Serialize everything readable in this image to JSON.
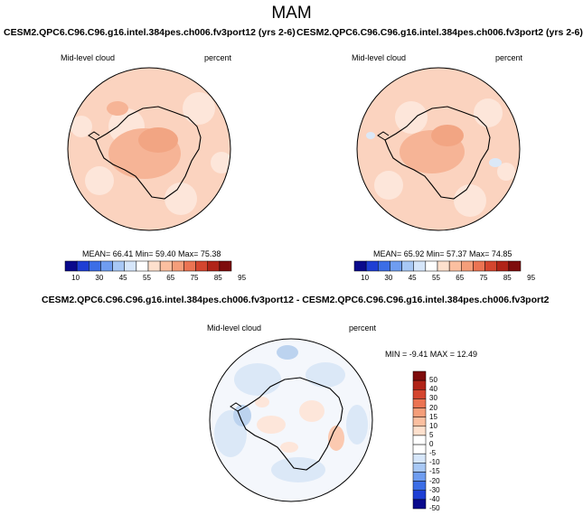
{
  "figure_title": "MAM",
  "panels": [
    {
      "title": "CESM2.QPC6.C96.C96.g16.intel.384pes.ch006.fv3port12 (yrs 2-6)",
      "variable": "Mid-level cloud",
      "units": "percent",
      "stats": "MEAN= 66.41   Min= 59.40   Max= 75.38",
      "colorbar_labels": [
        "10",
        "30",
        "45",
        "55",
        "65",
        "75",
        "85",
        "95"
      ],
      "colorbar_colors": [
        "#0a0a8c",
        "#1e3fd4",
        "#3c6ee6",
        "#6f9df0",
        "#a8c8f5",
        "#d6e6fa",
        "#ffffff",
        "#fde0cd",
        "#fbbfa0",
        "#f59e7a",
        "#eb7453",
        "#d4462f",
        "#b02418",
        "#7e0c0c"
      ]
    },
    {
      "title": "CESM2.QPC6.C96.C96.g16.intel.384pes.ch006.fv3port2 (yrs 2-6)",
      "variable": "Mid-level cloud",
      "units": "percent",
      "stats": "MEAN= 65.92   Min= 57.37   Max= 74.85",
      "colorbar_labels": [
        "10",
        "30",
        "45",
        "55",
        "65",
        "75",
        "85",
        "95"
      ],
      "colorbar_colors": [
        "#0a0a8c",
        "#1e3fd4",
        "#3c6ee6",
        "#6f9df0",
        "#a8c8f5",
        "#d6e6fa",
        "#ffffff",
        "#fde0cd",
        "#fbbfa0",
        "#f59e7a",
        "#eb7453",
        "#d4462f",
        "#b02418",
        "#7e0c0c"
      ]
    }
  ],
  "diff_panel": {
    "title": "CESM2.QPC6.C96.C96.g16.intel.384pes.ch006.fv3port12 - CESM2.QPC6.C96.C96.g16.intel.384pes.ch006.fv3port2",
    "variable": "Mid-level cloud",
    "units": "percent",
    "stats": "MIN = -9.41   MAX = 12.49",
    "colorbar_labels": [
      "50",
      "40",
      "30",
      "20",
      "15",
      "10",
      "5",
      "0",
      "-5",
      "-10",
      "-15",
      "-20",
      "-30",
      "-40",
      "-50"
    ],
    "colorbar_colors": [
      "#7e0c0c",
      "#b02418",
      "#d4462f",
      "#eb7453",
      "#f59e7a",
      "#fbbfa0",
      "#fde0cd",
      "#ffffff",
      "#ffffff",
      "#d6e6fa",
      "#a8c8f5",
      "#6f9df0",
      "#3c6ee6",
      "#1e3fd4",
      "#0a0a8c"
    ]
  }
}
